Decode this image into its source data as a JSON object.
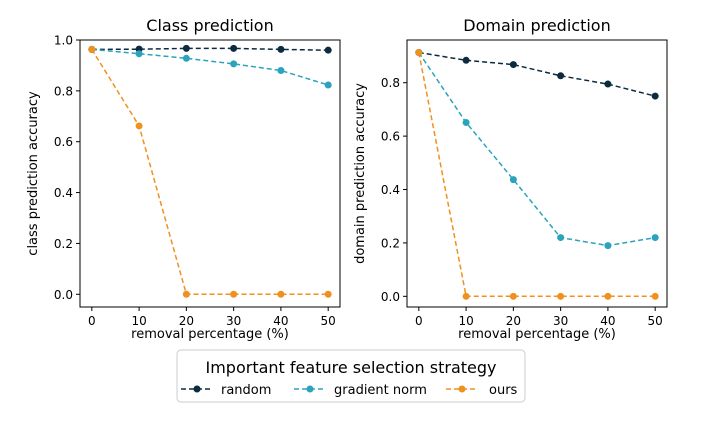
{
  "chart_data": [
    {
      "type": "line",
      "title": "Class prediction",
      "xlabel": "removal percentage (%)",
      "ylabel": "class prediction accuracy",
      "x": [
        0,
        10,
        20,
        30,
        40,
        50
      ],
      "xlim": [
        -2.5,
        52.5
      ],
      "ylim": [
        -0.05,
        1.0
      ],
      "xticks": [
        "0",
        "10",
        "20",
        "30",
        "40",
        "50"
      ],
      "yticks": [
        "0.0",
        "0.2",
        "0.4",
        "0.6",
        "0.8",
        "1.0"
      ],
      "ytick_values": [
        0.0,
        0.2,
        0.4,
        0.6,
        0.8,
        1.0
      ],
      "grid": false,
      "series": [
        {
          "name": "random",
          "color": "#0d2b3e",
          "values": [
            0.963,
            0.964,
            0.967,
            0.967,
            0.963,
            0.96
          ]
        },
        {
          "name": "gradient norm",
          "color": "#2aa3bd",
          "values": [
            0.963,
            0.946,
            0.928,
            0.906,
            0.88,
            0.823
          ]
        },
        {
          "name": "ours",
          "color": "#f0901e",
          "values": [
            0.963,
            0.662,
            0.0,
            0.0,
            0.0,
            0.0
          ]
        }
      ]
    },
    {
      "type": "line",
      "title": "Domain prediction",
      "xlabel": "removal percentage (%)",
      "ylabel": "domain prediction accuracy",
      "x": [
        0,
        10,
        20,
        30,
        40,
        50
      ],
      "xlim": [
        -2.5,
        52.5
      ],
      "ylim": [
        -0.04,
        0.96
      ],
      "xticks": [
        "0",
        "10",
        "20",
        "30",
        "40",
        "50"
      ],
      "yticks": [
        "0.0",
        "0.2",
        "0.4",
        "0.6",
        "0.8"
      ],
      "ytick_values": [
        0.0,
        0.2,
        0.4,
        0.6,
        0.8
      ],
      "grid": false,
      "series": [
        {
          "name": "random",
          "color": "#0d2b3e",
          "values": [
            0.913,
            0.884,
            0.868,
            0.826,
            0.795,
            0.75
          ]
        },
        {
          "name": "gradient norm",
          "color": "#2aa3bd",
          "values": [
            0.913,
            0.651,
            0.437,
            0.22,
            0.19,
            0.22
          ]
        },
        {
          "name": "ours",
          "color": "#f0901e",
          "values": [
            0.913,
            0.0,
            0.0,
            0.0,
            0.0,
            0.0
          ]
        }
      ]
    }
  ],
  "legend": {
    "title": "Important feature selection strategy",
    "placement": "bottom-center",
    "entries": [
      "random",
      "gradient norm",
      "ours"
    ]
  }
}
